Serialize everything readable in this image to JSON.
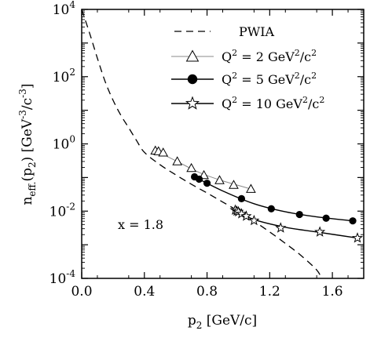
{
  "chart_data": {
    "type": "line",
    "x_label_base": "p",
    "x_label_sub": "2",
    "x_label_unit": " [GeV/c]",
    "y_label_base": "n",
    "y_label_sub": "eff.",
    "y_label_arg": "(p",
    "y_label_arg_sub": "2",
    "y_label_close": ")",
    "y_label_unit": "[GeV",
    "y_label_exp1": "-3",
    "y_label_mid": "/c",
    "y_label_exp2": "-3",
    "y_label_end": "]",
    "xlim": [
      0.0,
      1.8
    ],
    "ylim_log10": [
      -4,
      4
    ],
    "y_scale": "log",
    "x_ticks": [
      "0.0",
      "0.4",
      "0.8",
      "1.2",
      "1.6"
    ],
    "x_tick_values": [
      0.0,
      0.4,
      0.8,
      1.2,
      1.6
    ],
    "y_tick_exponents": [
      "4",
      "2",
      "0",
      "-2",
      "-4"
    ],
    "y_tick_values": [
      4,
      2,
      0,
      -2,
      -4
    ],
    "annotation": "x = 1.8",
    "legend": {
      "placement": "top-right",
      "entries": [
        {
          "key": "pwia",
          "label": "PWIA"
        },
        {
          "key": "q2",
          "label_base": "Q",
          "label_exp": "2",
          "label_rest": " = 2 GeV",
          "label_exp2": "2",
          "label_end": "/c",
          "label_exp3": "2"
        },
        {
          "key": "q5",
          "label_base": "Q",
          "label_exp": "2",
          "label_rest": " = 5 GeV",
          "label_exp2": "2",
          "label_end": "/c",
          "label_exp3": "2"
        },
        {
          "key": "q10",
          "label_base": "Q",
          "label_exp": "2",
          "label_rest": " = 10 GeV",
          "label_exp2": "2",
          "label_end": "/c",
          "label_exp3": "2"
        }
      ]
    },
    "series": [
      {
        "key": "pwia",
        "style": "dashed",
        "x": [
          0.0,
          0.05,
          0.1,
          0.15,
          0.2,
          0.25,
          0.3,
          0.35,
          0.4,
          0.5,
          0.6,
          0.7,
          0.8,
          0.9,
          1.0,
          1.1,
          1.2,
          1.3,
          1.4,
          1.5,
          1.53
        ],
        "y_log10": [
          4.0,
          3.3,
          2.55,
          1.85,
          1.3,
          0.85,
          0.48,
          0.1,
          -0.25,
          -0.62,
          -0.92,
          -1.2,
          -1.46,
          -1.73,
          -2.0,
          -2.3,
          -2.62,
          -2.96,
          -3.32,
          -3.75,
          -4.0
        ]
      },
      {
        "key": "q2",
        "marker": "triangle",
        "line_color": "#888888",
        "x": [
          0.47,
          0.49,
          0.52,
          0.61,
          0.7,
          0.78,
          0.88,
          0.97,
          1.08
        ],
        "y_log10": [
          -0.2,
          -0.22,
          -0.26,
          -0.52,
          -0.72,
          -0.93,
          -1.08,
          -1.22,
          -1.34
        ]
      },
      {
        "key": "q5",
        "marker": "circle",
        "line_color": "#000000",
        "x": [
          0.72,
          0.75,
          0.8,
          1.02,
          1.21,
          1.39,
          1.56,
          1.73
        ],
        "y_log10": [
          -0.98,
          -1.05,
          -1.17,
          -1.63,
          -1.93,
          -2.1,
          -2.21,
          -2.29
        ]
      },
      {
        "key": "q10",
        "marker": "star",
        "line_color": "#000000",
        "x": [
          0.98,
          0.99,
          1.0,
          1.02,
          1.05,
          1.1,
          1.27,
          1.52,
          1.76
        ],
        "y_log10": [
          -1.97,
          -2.0,
          -2.02,
          -2.08,
          -2.15,
          -2.28,
          -2.5,
          -2.62,
          -2.8
        ]
      }
    ],
    "fits": [
      {
        "key": "q2",
        "color": "#888888",
        "x": [
          0.47,
          0.6,
          0.75,
          0.9,
          1.08
        ],
        "y_log10": [
          -0.2,
          -0.5,
          -0.85,
          -1.1,
          -1.34
        ]
      },
      {
        "key": "q5",
        "color": "#000000",
        "x": [
          0.72,
          0.9,
          1.1,
          1.3,
          1.5,
          1.73
        ],
        "y_log10": [
          -0.98,
          -1.4,
          -1.78,
          -2.02,
          -2.17,
          -2.29
        ]
      },
      {
        "key": "q10",
        "color": "#000000",
        "x": [
          0.98,
          1.1,
          1.3,
          1.5,
          1.76
        ],
        "y_log10": [
          -1.97,
          -2.25,
          -2.48,
          -2.62,
          -2.8
        ]
      }
    ]
  }
}
